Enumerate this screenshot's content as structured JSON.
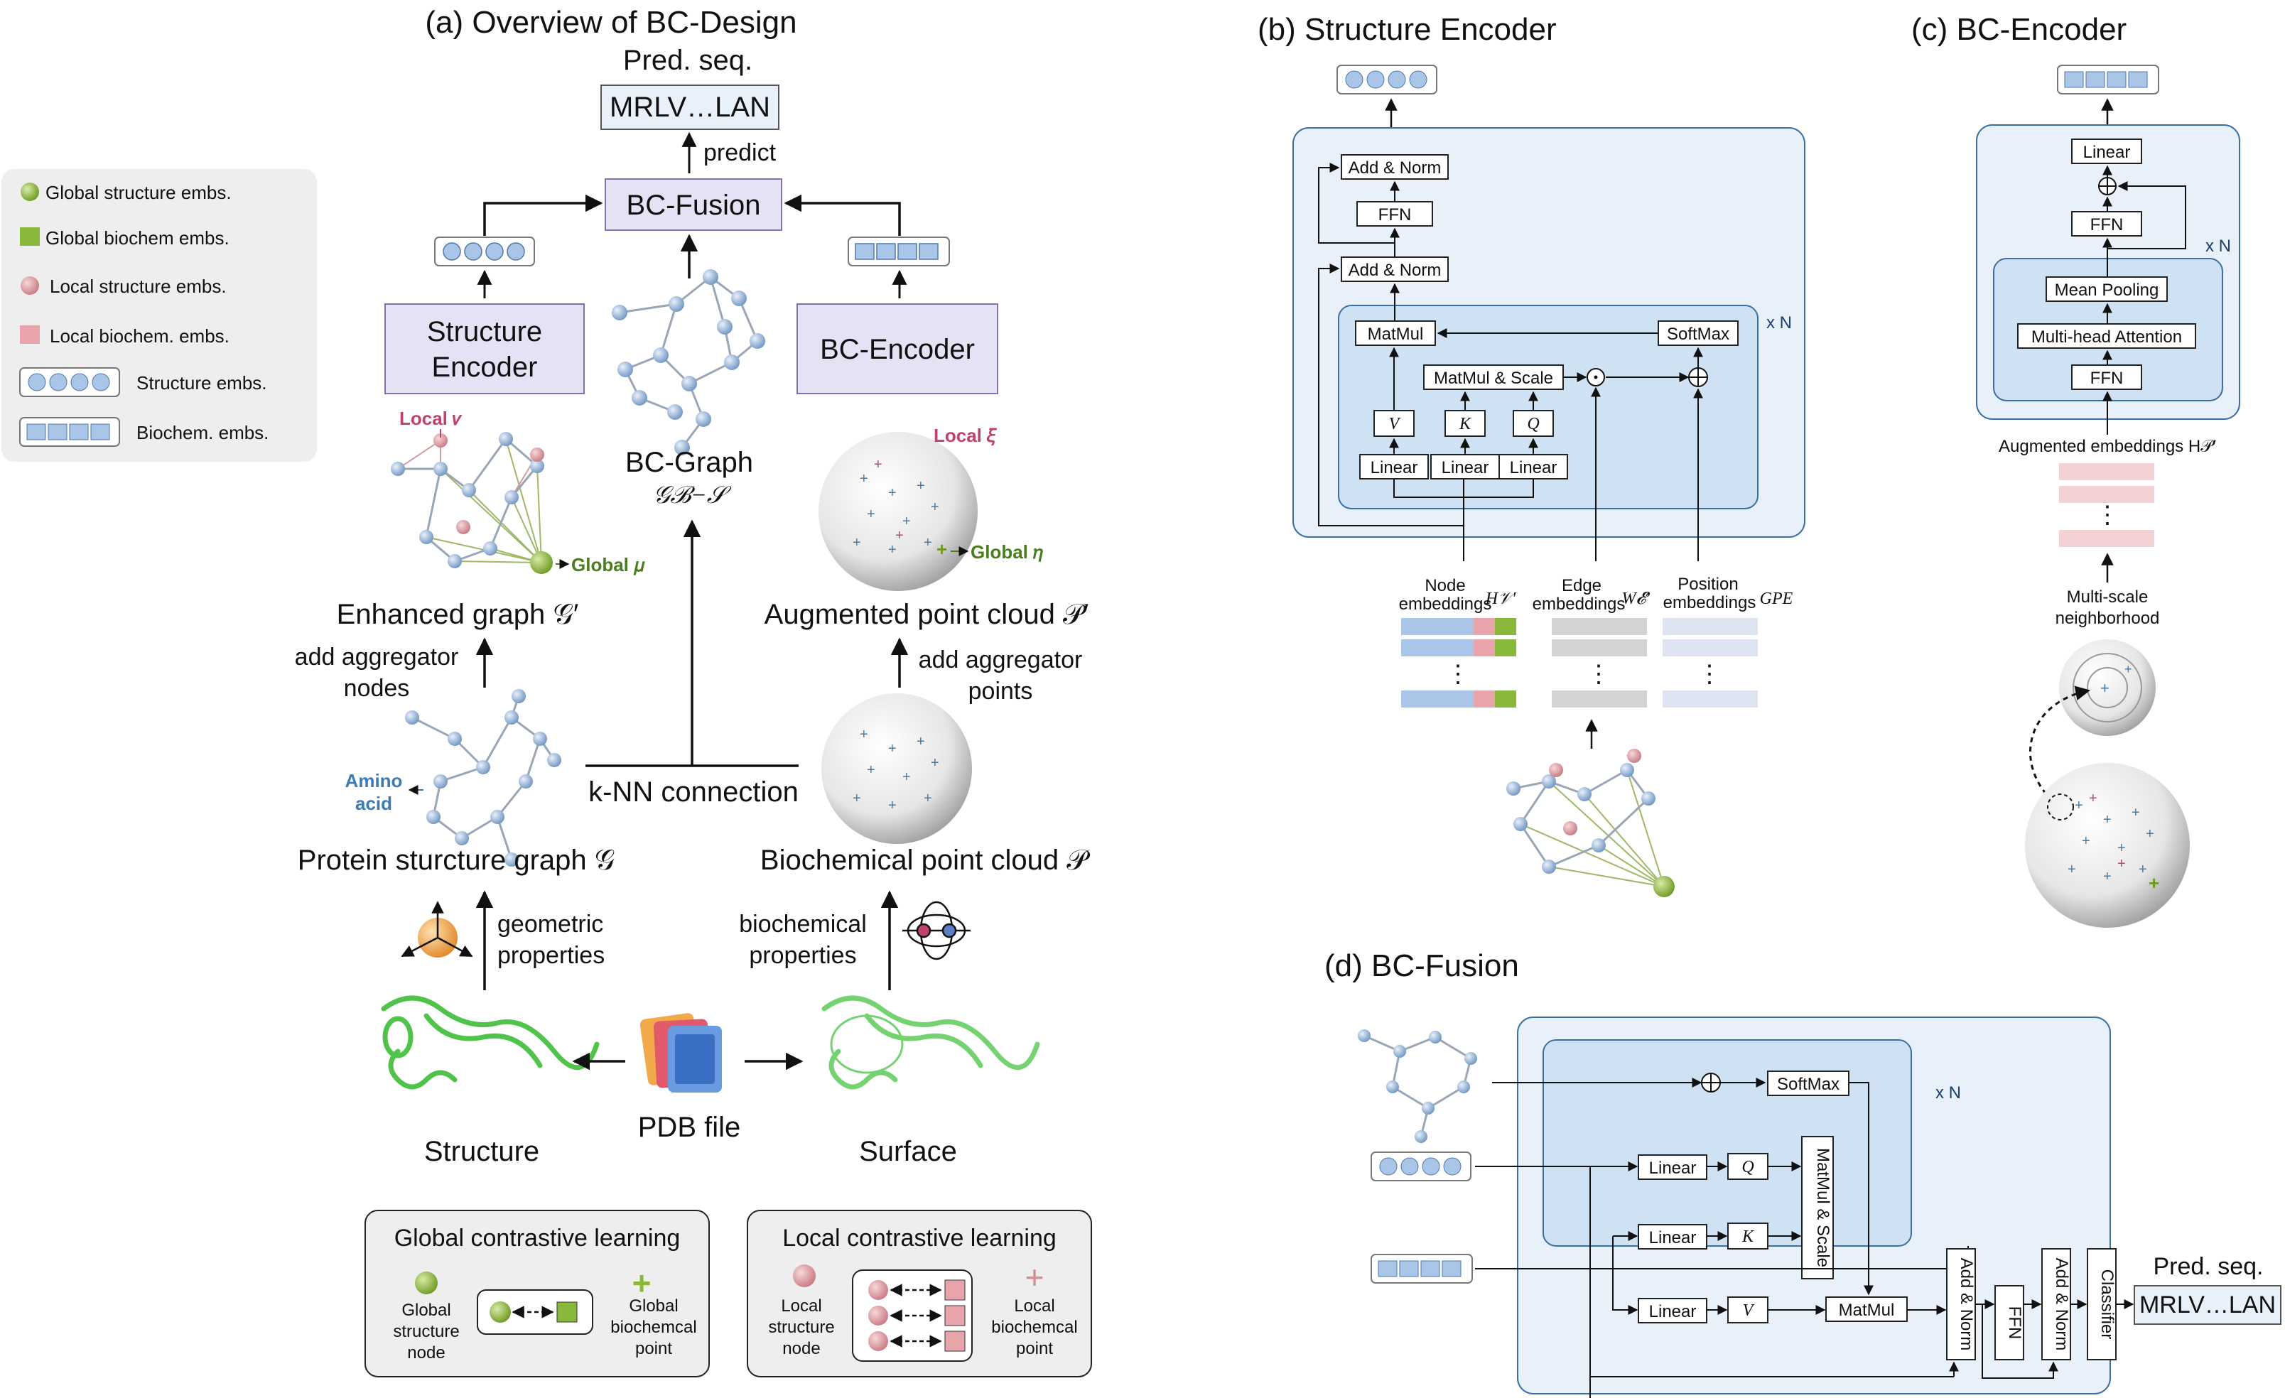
{
  "panel_a": {
    "title": "(a) Overview of BC-Design",
    "pred_seq_label": "Pred. seq.",
    "pred_seq_value": "MRLV…LAN",
    "predict_label": "predict",
    "fusion_label": "BC-Fusion",
    "structure_encoder_line1": "Structure",
    "structure_encoder_line2": "Encoder",
    "bc_encoder_label": "BC-Encoder",
    "bc_graph_label": "BC-Graph",
    "bc_graph_symbol": "𝒢ℬ−𝒮",
    "local_nu": "Local 𝜈",
    "global_mu": "Global 𝜇",
    "local_xi": "Local 𝜉",
    "global_eta": "Global 𝜂",
    "enhanced_graph": "Enhanced graph 𝒢′",
    "augmented_cloud": "Augmented point cloud 𝒫′",
    "add_agg_nodes_1": "add aggregator",
    "add_agg_nodes_2": "nodes",
    "add_agg_points_1": "add aggregator",
    "add_agg_points_2": "points",
    "amino_acid_1": "Amino",
    "amino_acid_2": "acid",
    "knn": "k-NN connection",
    "protein_graph": "Protein sturcture graph 𝒢",
    "bio_cloud": "Biochemical point cloud 𝒫",
    "geometric_1": "geometric",
    "geometric_2": "properties",
    "biochemical_1": "biochemical",
    "biochemical_2": "properties",
    "structure": "Structure",
    "pdb_file": "PDB file",
    "surface": "Surface"
  },
  "legend": {
    "items": [
      "Global structure embs.",
      "Global biochem embs.",
      "Local structure embs.",
      "Local biochem. embs.",
      "Structure embs.",
      "Biochem. embs."
    ]
  },
  "contrastive": {
    "global_title": "Global contrastive learning",
    "global_left_1": "Global",
    "global_left_2": "structure",
    "global_left_3": "node",
    "global_right_1": "Global",
    "global_right_2": "biochemcal",
    "global_right_3": "point",
    "local_title": "Local contrastive learning",
    "local_left_1": "Local",
    "local_left_2": "structure",
    "local_left_3": "node",
    "local_right_1": "Local",
    "local_right_2": "biochemcal",
    "local_right_3": "point"
  },
  "panel_b": {
    "title": "(b) Structure Encoder",
    "add_norm": "Add & Norm",
    "ffn": "FFN",
    "matmul": "MatMul",
    "softmax": "SoftMax",
    "matmul_scale": "MatMul & Scale",
    "v": "V",
    "k": "K",
    "q": "Q",
    "linear": "Linear",
    "xn": "x N",
    "node_emb_1": "Node",
    "node_emb_2": "embeddings",
    "node_sym": "H𝒱′",
    "edge_emb_1": "Edge",
    "edge_emb_2": "embeddings",
    "edge_sym": "W𝓔′",
    "pos_emb_1": "Position",
    "pos_emb_2": "embeddings",
    "pos_sym": "GPE",
    "dots": "⋮"
  },
  "panel_c": {
    "title": "(c) BC-Encoder",
    "linear": "Linear",
    "ffn": "FFN",
    "mean_pooling": "Mean Pooling",
    "mha": "Multi-head Attention",
    "xn": "x N",
    "aug_emb": "Augmented embeddings H𝒫′",
    "multi_scale_1": "Multi-scale",
    "multi_scale_2": "neighborhood",
    "dots": "⋮"
  },
  "panel_d": {
    "title": "(d) BC-Fusion",
    "softmax": "SoftMax",
    "xn": "x N",
    "linear": "Linear",
    "q": "Q",
    "k": "K",
    "v": "V",
    "matmul_scale": "MatMul & Scale",
    "matmul": "MatMul",
    "add_norm": "Add & Norm",
    "ffn": "FFN",
    "classifier": "Classifier",
    "pred_seq_label": "Pred. seq.",
    "pred_seq_value": "MRLV…LAN"
  },
  "colors": {
    "panel_blue": "#e8f1fa",
    "inner_blue": "#cfe2f3",
    "box_border": "#3a6ea5",
    "lavender": "#e4e2f4",
    "emb_blue": "#a9c6e8",
    "pink": "#e7a4aa",
    "green": "#8ab83a",
    "gray_bar": "#d3d3d3",
    "lilac_bar": "#dde3f1",
    "magenta": "#c0436e",
    "dark_green": "#4a7d1c",
    "amino_blue": "#3d7bb5"
  }
}
